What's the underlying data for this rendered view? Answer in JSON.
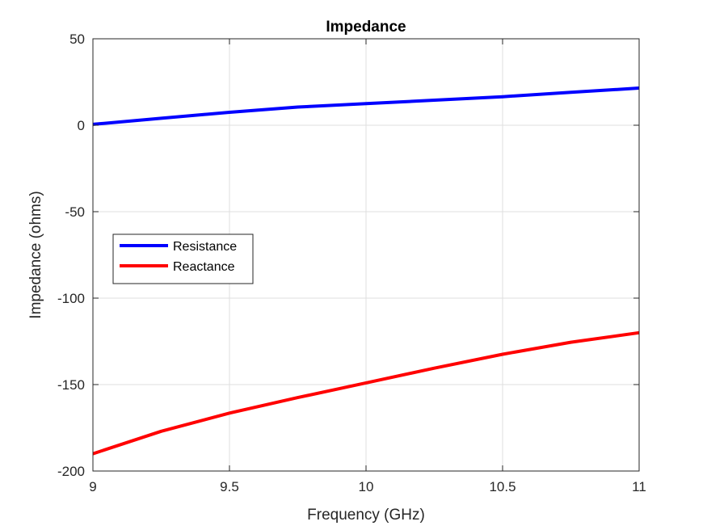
{
  "chart_data": {
    "type": "line",
    "title": "Impedance",
    "xlabel": "Frequency (GHz)",
    "ylabel": "Impedance (ohms)",
    "xlim": [
      9,
      11
    ],
    "ylim": [
      -200,
      50
    ],
    "xticks": [
      9,
      9.5,
      10,
      10.5,
      11
    ],
    "yticks": [
      50,
      0,
      -50,
      -100,
      -150,
      -200
    ],
    "xtick_labels": [
      "9",
      "9.5",
      "10",
      "10.5",
      "11"
    ],
    "ytick_labels": [
      "50",
      "0",
      "-50",
      "-100",
      "-150",
      "-200"
    ],
    "grid": true,
    "legend_position": "middle-left",
    "series": [
      {
        "name": "Resistance",
        "color": "#0000ff",
        "x": [
          9,
          9.25,
          9.5,
          9.75,
          10,
          10.25,
          10.5,
          10.75,
          11
        ],
        "y": [
          0.5,
          4,
          7.5,
          10.5,
          12.5,
          14.5,
          16.5,
          19,
          21.5
        ]
      },
      {
        "name": "Reactance",
        "color": "#ff0000",
        "x": [
          9,
          9.25,
          9.5,
          9.75,
          10,
          10.25,
          10.5,
          10.75,
          11
        ],
        "y": [
          -190,
          -177,
          -166.5,
          -157.5,
          -149,
          -140.5,
          -132.5,
          -125.5,
          -120
        ]
      }
    ]
  }
}
